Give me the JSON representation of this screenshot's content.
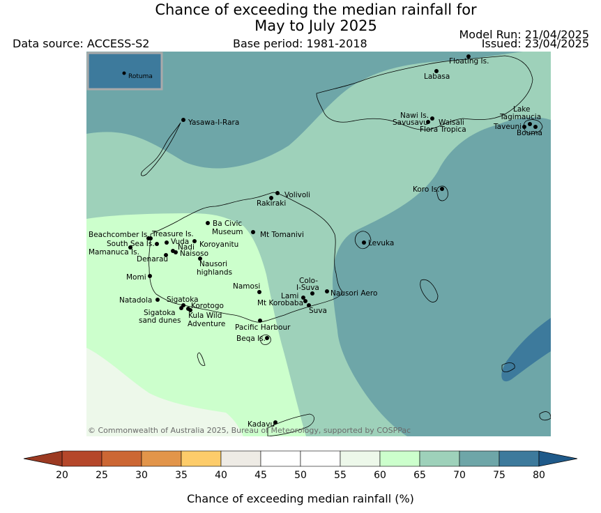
{
  "title_line1": "Chance of exceeding the median rainfall for",
  "title_line2": "May to July 2025",
  "data_source": "Data source: ACCESS-S2",
  "base_period": "Base period: 1981-2018",
  "model_run": "Model Run: 21/04/2025",
  "issued": "Issued: 23/04/2025",
  "copyright": "© Commonwealth of Australia 2025, Bureau of Meteorology, supported by COSPPac",
  "inset_label": "Rotuma",
  "colorbar": {
    "label": "Chance of exceeding median rainfall (%)",
    "ticks": [
      "20",
      "25",
      "30",
      "35",
      "40",
      "45",
      "50",
      "55",
      "60",
      "65",
      "70",
      "75",
      "80"
    ],
    "colors": [
      "#b5472a",
      "#cc6734",
      "#e2954a",
      "#fdcc6a",
      "#eeebe5",
      "#ffffff",
      "#ffffff",
      "#edf8ea",
      "#ccffcc",
      "#9ed1ba",
      "#6ea6a8",
      "#3d7a9c"
    ],
    "low_extend_color": "#9c3a22",
    "high_extend_color": "#1f5a8a"
  },
  "map_colors": {
    "c55_60": "#edf8ea",
    "c60_65": "#ccffcc",
    "c65_70": "#9ed1ba",
    "c70_75": "#6ea6a8",
    "c75_80": "#3d7a9c"
  },
  "places": [
    {
      "name": "Floating Is."
    },
    {
      "name": "Labasa"
    },
    {
      "name": "Yasawa-I-Rara"
    },
    {
      "name": "Nawi Is."
    },
    {
      "name": "Savusavu"
    },
    {
      "name": "Waisali"
    },
    {
      "name": "Flora Tropica"
    },
    {
      "name": "Lake"
    },
    {
      "name": "Tagimaucia"
    },
    {
      "name": "Taveuni"
    },
    {
      "name": "Bouma"
    },
    {
      "name": "Volivoli"
    },
    {
      "name": "Rakiraki"
    },
    {
      "name": "Koro Is."
    },
    {
      "name": "Ba Civic"
    },
    {
      "name": "Museum"
    },
    {
      "name": "Mt Tomanivi"
    },
    {
      "name": "Beachcomber Is."
    },
    {
      "name": "Treasure Is."
    },
    {
      "name": "South Sea Is."
    },
    {
      "name": "Vuda"
    },
    {
      "name": "Koroyanitu"
    },
    {
      "name": "Nadi"
    },
    {
      "name": "Mamanuca Is."
    },
    {
      "name": "Naisoso"
    },
    {
      "name": "Denarau"
    },
    {
      "name": "Levuka"
    },
    {
      "name": "Nausori"
    },
    {
      "name": "highlands"
    },
    {
      "name": "Momi"
    },
    {
      "name": "Namosi"
    },
    {
      "name": "Colo-"
    },
    {
      "name": "I-Suva"
    },
    {
      "name": "Lami"
    },
    {
      "name": "Nausori Aero"
    },
    {
      "name": "Natadola"
    },
    {
      "name": "Sigatoka"
    },
    {
      "name": "Mt Korobaba"
    },
    {
      "name": "Korotogo"
    },
    {
      "name": "Suva"
    },
    {
      "name": "Sigatoka"
    },
    {
      "name": "sand dunes"
    },
    {
      "name": "Kula Wild"
    },
    {
      "name": "Adventure"
    },
    {
      "name": "Pacific Harbour"
    },
    {
      "name": "Beqa Is."
    },
    {
      "name": "Kadavu"
    }
  ]
}
